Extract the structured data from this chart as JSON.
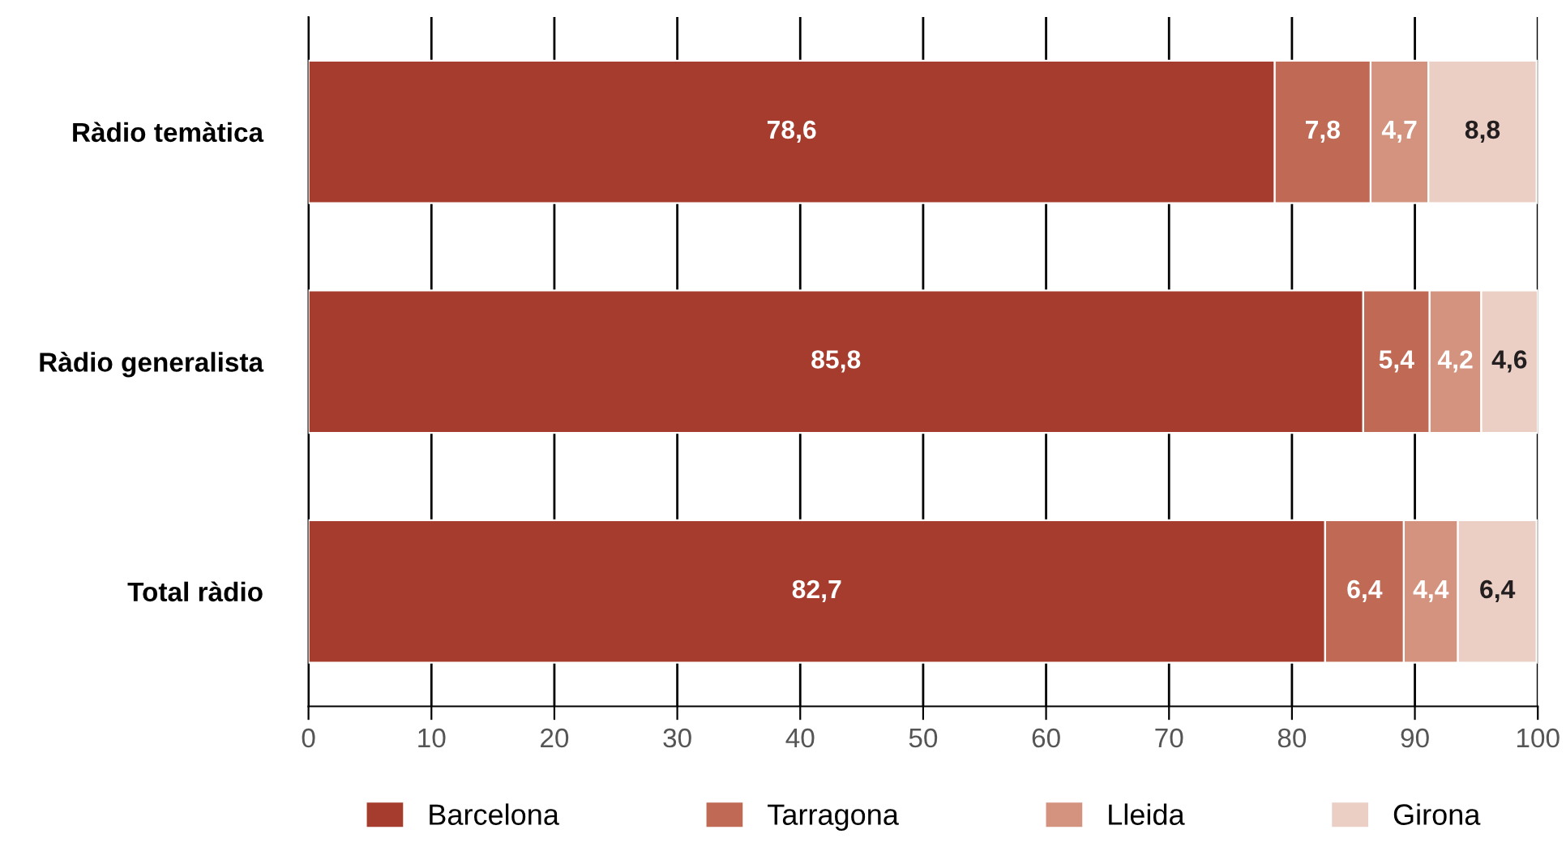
{
  "chart_data": {
    "type": "bar",
    "orientation": "horizontal",
    "stacked": true,
    "categories": [
      "Ràdio temàtica",
      "Ràdio generalista",
      "Total ràdio"
    ],
    "series": [
      {
        "name": "Barcelona",
        "color": "#a63c2d",
        "values": [
          78.6,
          85.8,
          82.7
        ],
        "value_labels": [
          "78,6",
          "85,8",
          "82,7"
        ]
      },
      {
        "name": "Tarragona",
        "color": "#c06a55",
        "values": [
          7.8,
          5.4,
          6.4
        ],
        "value_labels": [
          "7,8",
          "5,4",
          "6,4"
        ]
      },
      {
        "name": "Lleida",
        "color": "#d4937f",
        "values": [
          4.7,
          4.2,
          4.4
        ],
        "value_labels": [
          "4,7",
          "4,2",
          "4,4"
        ]
      },
      {
        "name": "Girona",
        "color": "#ebcfc4",
        "values": [
          8.8,
          4.6,
          6.4
        ],
        "value_labels": [
          "8,8",
          "4,6",
          "6,4"
        ]
      }
    ],
    "xlim": [
      0,
      100
    ],
    "xticks": [
      0,
      10,
      20,
      30,
      40,
      50,
      60,
      70,
      80,
      90,
      100
    ],
    "grid": "x",
    "legend": "bottom"
  }
}
